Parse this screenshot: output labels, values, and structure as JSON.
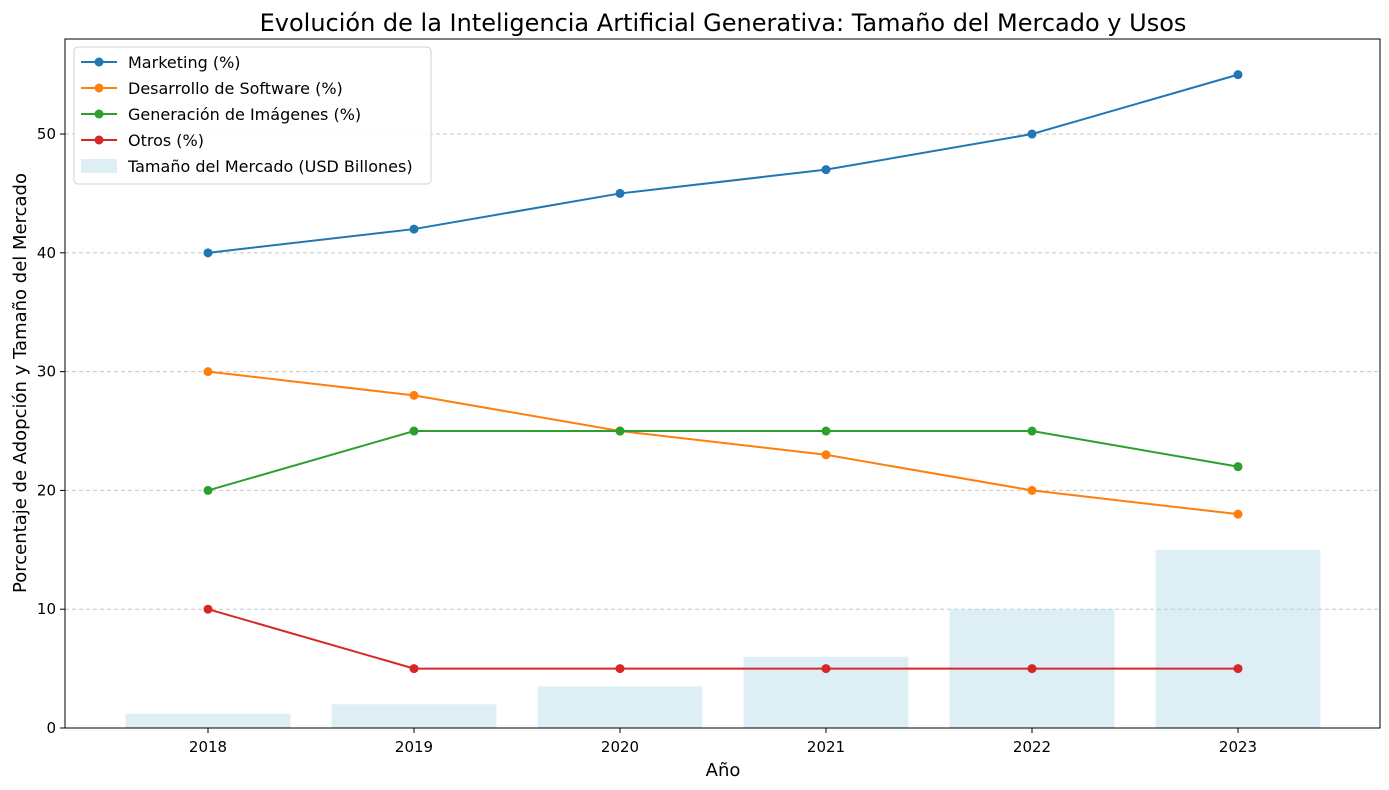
{
  "chart_data": {
    "type": "line",
    "title": "Evolución de la Inteligencia Artificial Generativa: Tamaño del Mercado y Usos",
    "xlabel": "Año",
    "ylabel": "Porcentaje de Adopción y Tamaño del Mercado",
    "categories": [
      "2018",
      "2019",
      "2020",
      "2021",
      "2022",
      "2023"
    ],
    "ylim": [
      0,
      58
    ],
    "yticks": [
      0,
      10,
      20,
      30,
      40,
      50
    ],
    "grid": "y-dashed",
    "legend_position": "top-left",
    "bars": {
      "name": "Tamaño del Mercado (USD Billones)",
      "color": "#add8e6",
      "values": [
        1.2,
        2.0,
        3.5,
        6.0,
        10.0,
        15.0
      ]
    },
    "series": [
      {
        "name": "Marketing (%)",
        "color": "#1f77b4",
        "values": [
          40,
          42,
          45,
          47,
          50,
          55
        ]
      },
      {
        "name": "Desarrollo de Software (%)",
        "color": "#ff7f0e",
        "values": [
          30,
          28,
          25,
          23,
          20,
          18
        ]
      },
      {
        "name": "Generación de Imágenes (%)",
        "color": "#2ca02c",
        "values": [
          20,
          25,
          25,
          25,
          25,
          22
        ]
      },
      {
        "name": "Otros (%)",
        "color": "#d62728",
        "values": [
          10,
          5,
          5,
          5,
          5,
          5
        ]
      }
    ]
  }
}
